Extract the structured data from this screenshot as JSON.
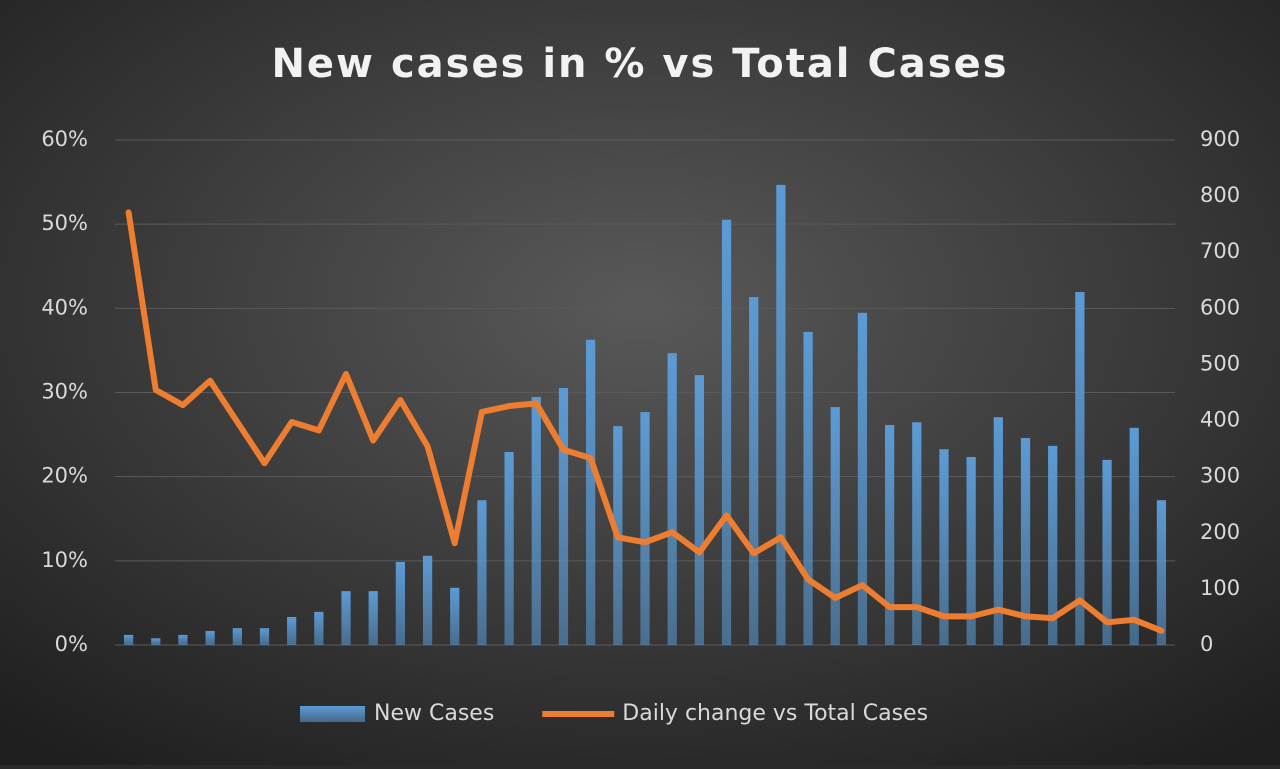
{
  "chart_data": {
    "type": "bar+line",
    "title": "New cases in % vs Total Cases",
    "categories": [
      null,
      null,
      null,
      null,
      null,
      null,
      null,
      null,
      null,
      null,
      null,
      null,
      null,
      null,
      null,
      null,
      null,
      null,
      null,
      null,
      null,
      null,
      null,
      null,
      null,
      null,
      null,
      null,
      null,
      null,
      null,
      null,
      null,
      null,
      null,
      null,
      null,
      null,
      null
    ],
    "series": [
      {
        "name": "New Cases",
        "type": "bar",
        "axis": "y2",
        "color": "#5b9bd5",
        "values": [
          18,
          12,
          18,
          25,
          30,
          30,
          50,
          59,
          96,
          96,
          148,
          159,
          102,
          258,
          344,
          442,
          458,
          544,
          390,
          415,
          520,
          481,
          758,
          620,
          820,
          558,
          424,
          592,
          392,
          397,
          349,
          335,
          406,
          369,
          355,
          629,
          330,
          387,
          258
        ]
      },
      {
        "name": "Daily change vs Total Cases",
        "type": "line",
        "axis": "y",
        "color": "#ed7d31",
        "values": [
          51.4,
          30.3,
          28.5,
          31.4,
          26.5,
          21.6,
          26.5,
          25.5,
          32.2,
          24.3,
          29.1,
          23.6,
          12.1,
          27.7,
          28.4,
          28.7,
          23.2,
          22.2,
          12.8,
          12.2,
          13.4,
          11.0,
          15.4,
          10.9,
          12.8,
          7.8,
          5.6,
          7.1,
          4.5,
          4.5,
          3.4,
          3.4,
          4.2,
          3.4,
          3.2,
          5.3,
          2.7,
          3.0,
          1.7
        ]
      }
    ],
    "ylim": [
      0,
      60
    ],
    "yticks": [
      {
        "value": 0,
        "label": "0%"
      },
      {
        "value": 10,
        "label": "10%"
      },
      {
        "value": 20,
        "label": "20%"
      },
      {
        "value": 30,
        "label": "30%"
      },
      {
        "value": 40,
        "label": "40%"
      },
      {
        "value": 50,
        "label": "50%"
      },
      {
        "value": 60,
        "label": "60%"
      }
    ],
    "y2lim": [
      0,
      900
    ],
    "y2ticks": [
      0,
      100,
      200,
      300,
      400,
      500,
      600,
      700,
      800,
      900
    ],
    "grid": true,
    "legend": "bottom"
  }
}
